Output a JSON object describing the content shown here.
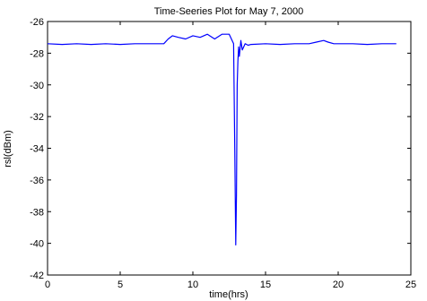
{
  "chart_data": {
    "type": "line",
    "title": "Time-Seeries Plot for May 7, 2000",
    "xlabel": "time(hrs)",
    "ylabel": "rsl(dBm)",
    "xlim": [
      0,
      25
    ],
    "ylim": [
      -42,
      -26
    ],
    "xticks": [
      0,
      5,
      10,
      15,
      20,
      25
    ],
    "yticks": [
      -26,
      -28,
      -30,
      -32,
      -34,
      -36,
      -38,
      -40,
      -42
    ],
    "grid": false,
    "series": [
      {
        "color": "#0000ff",
        "x": [
          0,
          1,
          2,
          3,
          4,
          5,
          6,
          7,
          8,
          8.3,
          8.6,
          9.0,
          9.5,
          10.0,
          10.5,
          11.0,
          11.5,
          12.0,
          12.5,
          12.8,
          12.88,
          12.95,
          13.0,
          13.05,
          13.1,
          13.15,
          13.2,
          13.3,
          13.4,
          13.6,
          13.8,
          14,
          15,
          16,
          17,
          18,
          18.5,
          19.0,
          19.3,
          19.7,
          20,
          21,
          22,
          23,
          24
        ],
        "y": [
          -27.4,
          -27.45,
          -27.4,
          -27.45,
          -27.4,
          -27.45,
          -27.4,
          -27.4,
          -27.4,
          -27.1,
          -26.9,
          -27.0,
          -27.1,
          -26.9,
          -27.0,
          -26.8,
          -27.1,
          -26.8,
          -26.8,
          -27.4,
          -34.0,
          -40.1,
          -37.0,
          -30.0,
          -28.5,
          -27.6,
          -28.2,
          -27.2,
          -27.8,
          -27.4,
          -27.5,
          -27.45,
          -27.4,
          -27.45,
          -27.4,
          -27.4,
          -27.3,
          -27.2,
          -27.3,
          -27.4,
          -27.4,
          -27.4,
          -27.45,
          -27.4,
          -27.4
        ]
      }
    ]
  }
}
